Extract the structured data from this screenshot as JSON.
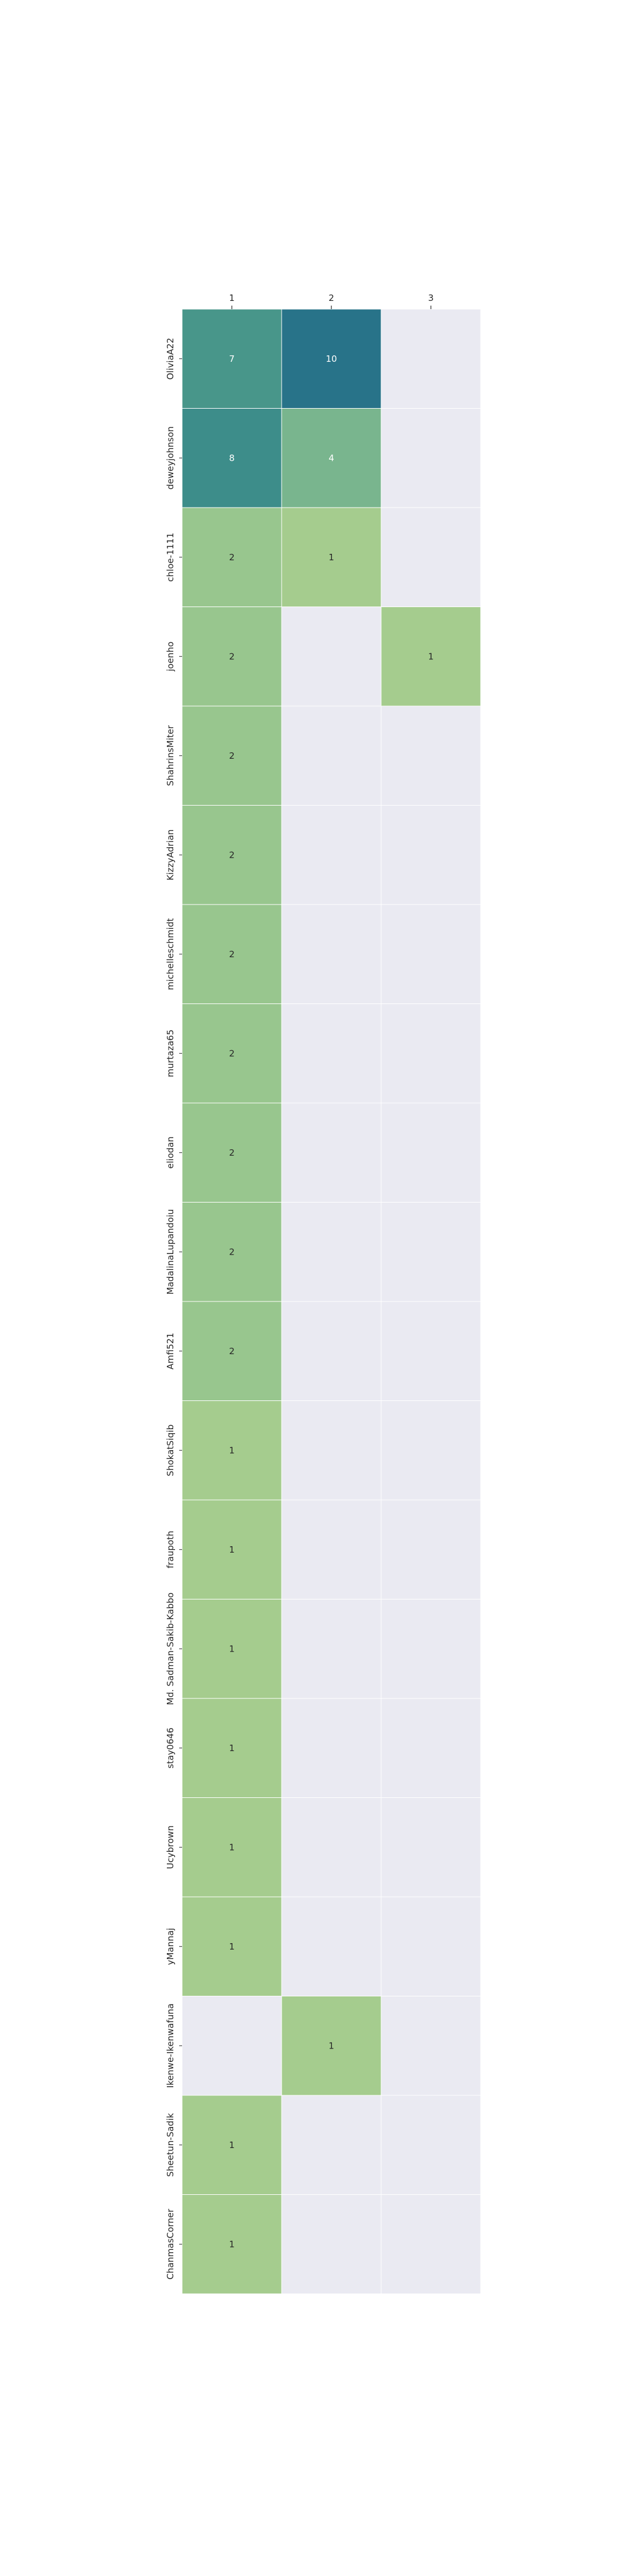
{
  "chart_data": {
    "type": "heatmap",
    "title": "",
    "xlabel": "",
    "ylabel": "",
    "x_categories": [
      "1",
      "2",
      "3"
    ],
    "y_categories": [
      "OliviaA22",
      "deweyjohnson",
      "chloe-1111",
      "joenho",
      "ShahrinsMiter",
      "KizzyAdrian",
      "michelleschmidt",
      "murtaza65",
      "eliodan",
      "MadalinaLupandoiu",
      "Amfi521",
      "ShokatSiqib",
      "fraupoth",
      "Md. Sadman-Sakib-Kabbo",
      "stay0646",
      "Ucybrown",
      "yMannaj",
      "Ikenwe-Ikenwafuna",
      "Sheetun-Sadik",
      "ChanmasCorner"
    ],
    "values": [
      [
        7,
        10,
        null
      ],
      [
        8,
        4,
        null
      ],
      [
        2,
        1,
        null
      ],
      [
        2,
        null,
        1
      ],
      [
        2,
        null,
        null
      ],
      [
        2,
        null,
        null
      ],
      [
        2,
        null,
        null
      ],
      [
        2,
        null,
        null
      ],
      [
        2,
        null,
        null
      ],
      [
        2,
        null,
        null
      ],
      [
        2,
        null,
        null
      ],
      [
        1,
        null,
        null
      ],
      [
        1,
        null,
        null
      ],
      [
        1,
        null,
        null
      ],
      [
        1,
        null,
        null
      ],
      [
        1,
        null,
        null
      ],
      [
        1,
        null,
        null
      ],
      [
        null,
        1,
        null
      ],
      [
        1,
        null,
        null
      ],
      [
        1,
        null,
        null
      ]
    ],
    "value_range": [
      1,
      10
    ],
    "colormap": [
      "#a5cc8e",
      "#8ec18e",
      "#6faf8e",
      "#4f9b8a",
      "#3b8b8a",
      "#287389"
    ],
    "empty_color": "#eaeaf2",
    "gridlines_color": "#ffffff",
    "colorbar": false,
    "x_axis_position": "top"
  }
}
